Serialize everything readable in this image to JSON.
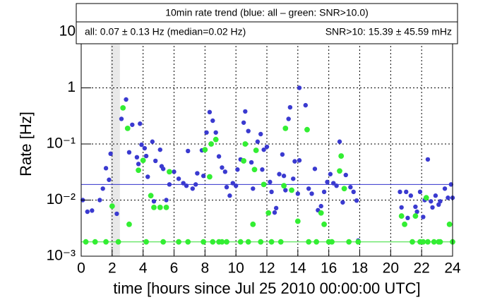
{
  "chart_data": {
    "type": "scatter",
    "stats_box": {
      "title": "10min rate trend (blue: all – green: SNR>10.0)",
      "line_all": "all:  0.07 ±  0.13 Hz (median=0.02 Hz)",
      "line_snr": "SNR>10: 15.39 ± 45.59 mHz"
    },
    "xlabel": "time [hours since Jul 25 2010 00:00:00 UTC]",
    "ylabel": "Rate [Hz]",
    "xlim": [
      0,
      24
    ],
    "ylim": [
      0.001,
      10
    ],
    "log_y": true,
    "grid": true,
    "xticks": [
      0,
      2,
      4,
      6,
      8,
      10,
      12,
      14,
      16,
      18,
      20,
      22,
      24
    ],
    "yticks": [
      {
        "value": 0.001,
        "label": "10⁻³"
      },
      {
        "value": 0.01,
        "label": "10⁻²"
      },
      {
        "value": 0.1,
        "label": "10⁻¹"
      },
      1,
      10
    ],
    "shaded_x": [
      1.9,
      2.5
    ],
    "reference_lines": [
      {
        "value": 0.019,
        "color": "#3333cc"
      },
      {
        "value": 0.0018,
        "color": "#33dd33"
      }
    ],
    "series": [
      {
        "color": "#3a3ad0",
        "radius": 3.2,
        "x": [
          0.1,
          0.4,
          0.7,
          1.2,
          1.4,
          1.6,
          1.8,
          1.9,
          2.3,
          2.6,
          2.9,
          3.1,
          3.3,
          3.6,
          3.7,
          3.8,
          3.9,
          4.1,
          4.2,
          4.3,
          4.6,
          4.7,
          4.8,
          5.1,
          5.2,
          5.3,
          5.5,
          5.7,
          6.0,
          6.3,
          6.6,
          6.8,
          6.9,
          7.2,
          7.4,
          7.5,
          7.8,
          7.9,
          8.1,
          8.3,
          8.5,
          8.7,
          8.9,
          9.1,
          9.3,
          9.4,
          9.6,
          9.8,
          10.0,
          10.1,
          10.3,
          10.5,
          10.6,
          10.8,
          11.0,
          11.1,
          11.4,
          11.6,
          11.7,
          11.8,
          12.0,
          12.2,
          12.3,
          12.5,
          12.6,
          12.8,
          13.0,
          13.1,
          13.2,
          13.4,
          13.5,
          13.7,
          13.8,
          14.0,
          14.1,
          14.1,
          14.5,
          14.7,
          14.9,
          15.1,
          15.3,
          15.5,
          15.7,
          15.9,
          16.1,
          16.3,
          16.5,
          16.7,
          16.9,
          17.1,
          17.3,
          17.4,
          17.6,
          17.8,
          17.9,
          20.6,
          20.7,
          21.0,
          21.1,
          21.3,
          21.6,
          21.7,
          21.9,
          22.1,
          22.2,
          22.4,
          22.6,
          22.7,
          22.9,
          23.1,
          23.2,
          23.5,
          23.7,
          23.9,
          24.0
        ],
        "values": [
          0.01,
          0.0062,
          0.0065,
          0.01,
          0.016,
          0.037,
          0.023,
          0.067,
          0.0057,
          0.28,
          0.62,
          0.071,
          0.22,
          0.058,
          0.044,
          0.23,
          0.097,
          0.084,
          0.061,
          0.026,
          0.11,
          0.0095,
          0.05,
          0.079,
          0.04,
          0.036,
          0.01,
          0.019,
          0.032,
          0.024,
          0.02,
          0.018,
          0.075,
          0.016,
          0.019,
          0.03,
          0.077,
          0.027,
          0.16,
          0.37,
          0.26,
          0.16,
          0.06,
          0.038,
          0.032,
          0.017,
          0.012,
          0.02,
          0.018,
          0.035,
          0.053,
          0.24,
          0.38,
          0.17,
          0.047,
          0.016,
          0.11,
          0.15,
          0.035,
          0.079,
          0.089,
          0.021,
          0.014,
          0.006,
          0.0072,
          0.029,
          0.065,
          0.027,
          0.015,
          0.28,
          0.45,
          0.024,
          0.049,
          0.013,
          0.051,
          1.0,
          0.49,
          0.016,
          0.013,
          0.036,
          0.0066,
          0.0078,
          0.014,
          0.021,
          0.029,
          0.02,
          0.018,
          0.11,
          0.0091,
          0.028,
          0.0018,
          0.017,
          0.014,
          0.0098,
          0.0019,
          0.014,
          0.0074,
          0.014,
          0.0048,
          0.012,
          0.0076,
          0.0062,
          0.014,
          0.005,
          0.01,
          0.053,
          0.0095,
          0.0074,
          0.012,
          0.0083,
          0.0095,
          0.016,
          0.011,
          0.019,
          0.011
        ]
      },
      {
        "color": "#33ee33",
        "radius": 3.9,
        "x": [
          0.3,
          0.9,
          1.6,
          2.0,
          2.4,
          2.7,
          3.0,
          3.1,
          3.7,
          4.0,
          4.2,
          4.5,
          4.7,
          5.1,
          5.3,
          5.5,
          5.7,
          6.3,
          6.9,
          7.9,
          8.0,
          8.3,
          8.4,
          8.5,
          8.7,
          8.9,
          9.1,
          9.4,
          10.3,
          10.5,
          10.6,
          10.8,
          11.1,
          11.2,
          11.3,
          11.6,
          11.8,
          12.1,
          12.3,
          12.9,
          13.1,
          13.2,
          13.6,
          14.0,
          14.6,
          14.7,
          15.2,
          15.5,
          15.7,
          16.0,
          16.2,
          16.7,
          16.8,
          17.0,
          17.3,
          17.9,
          20.7,
          20.9,
          21.4,
          21.6,
          21.9,
          22.1,
          22.3,
          22.4,
          22.8,
          23.1,
          23.2,
          23.8,
          24.0
        ],
        "values": [
          0.0018,
          0.0018,
          0.0018,
          0.0078,
          0.0018,
          0.44,
          0.19,
          0.0037,
          0.034,
          0.051,
          0.0018,
          0.012,
          0.0074,
          0.0074,
          0.0018,
          0.0074,
          0.032,
          0.0018,
          0.0018,
          0.0018,
          0.079,
          0.026,
          0.1,
          0.0018,
          0.12,
          0.0018,
          0.0018,
          0.0018,
          0.0018,
          0.05,
          0.1,
          0.0018,
          0.0037,
          0.035,
          0.077,
          0.0018,
          0.019,
          0.0059,
          0.0018,
          0.0018,
          0.018,
          0.19,
          0.015,
          0.0042,
          0.18,
          0.0018,
          0.0018,
          0.0059,
          0.0037,
          0.0018,
          0.0018,
          0.033,
          0.061,
          0.016,
          0.0018,
          0.0018,
          0.0052,
          0.0037,
          0.0018,
          0.0052,
          0.0018,
          0.0018,
          0.011,
          0.0018,
          0.0018,
          0.0018,
          0.0018,
          0.0037,
          0.0018
        ]
      }
    ]
  }
}
